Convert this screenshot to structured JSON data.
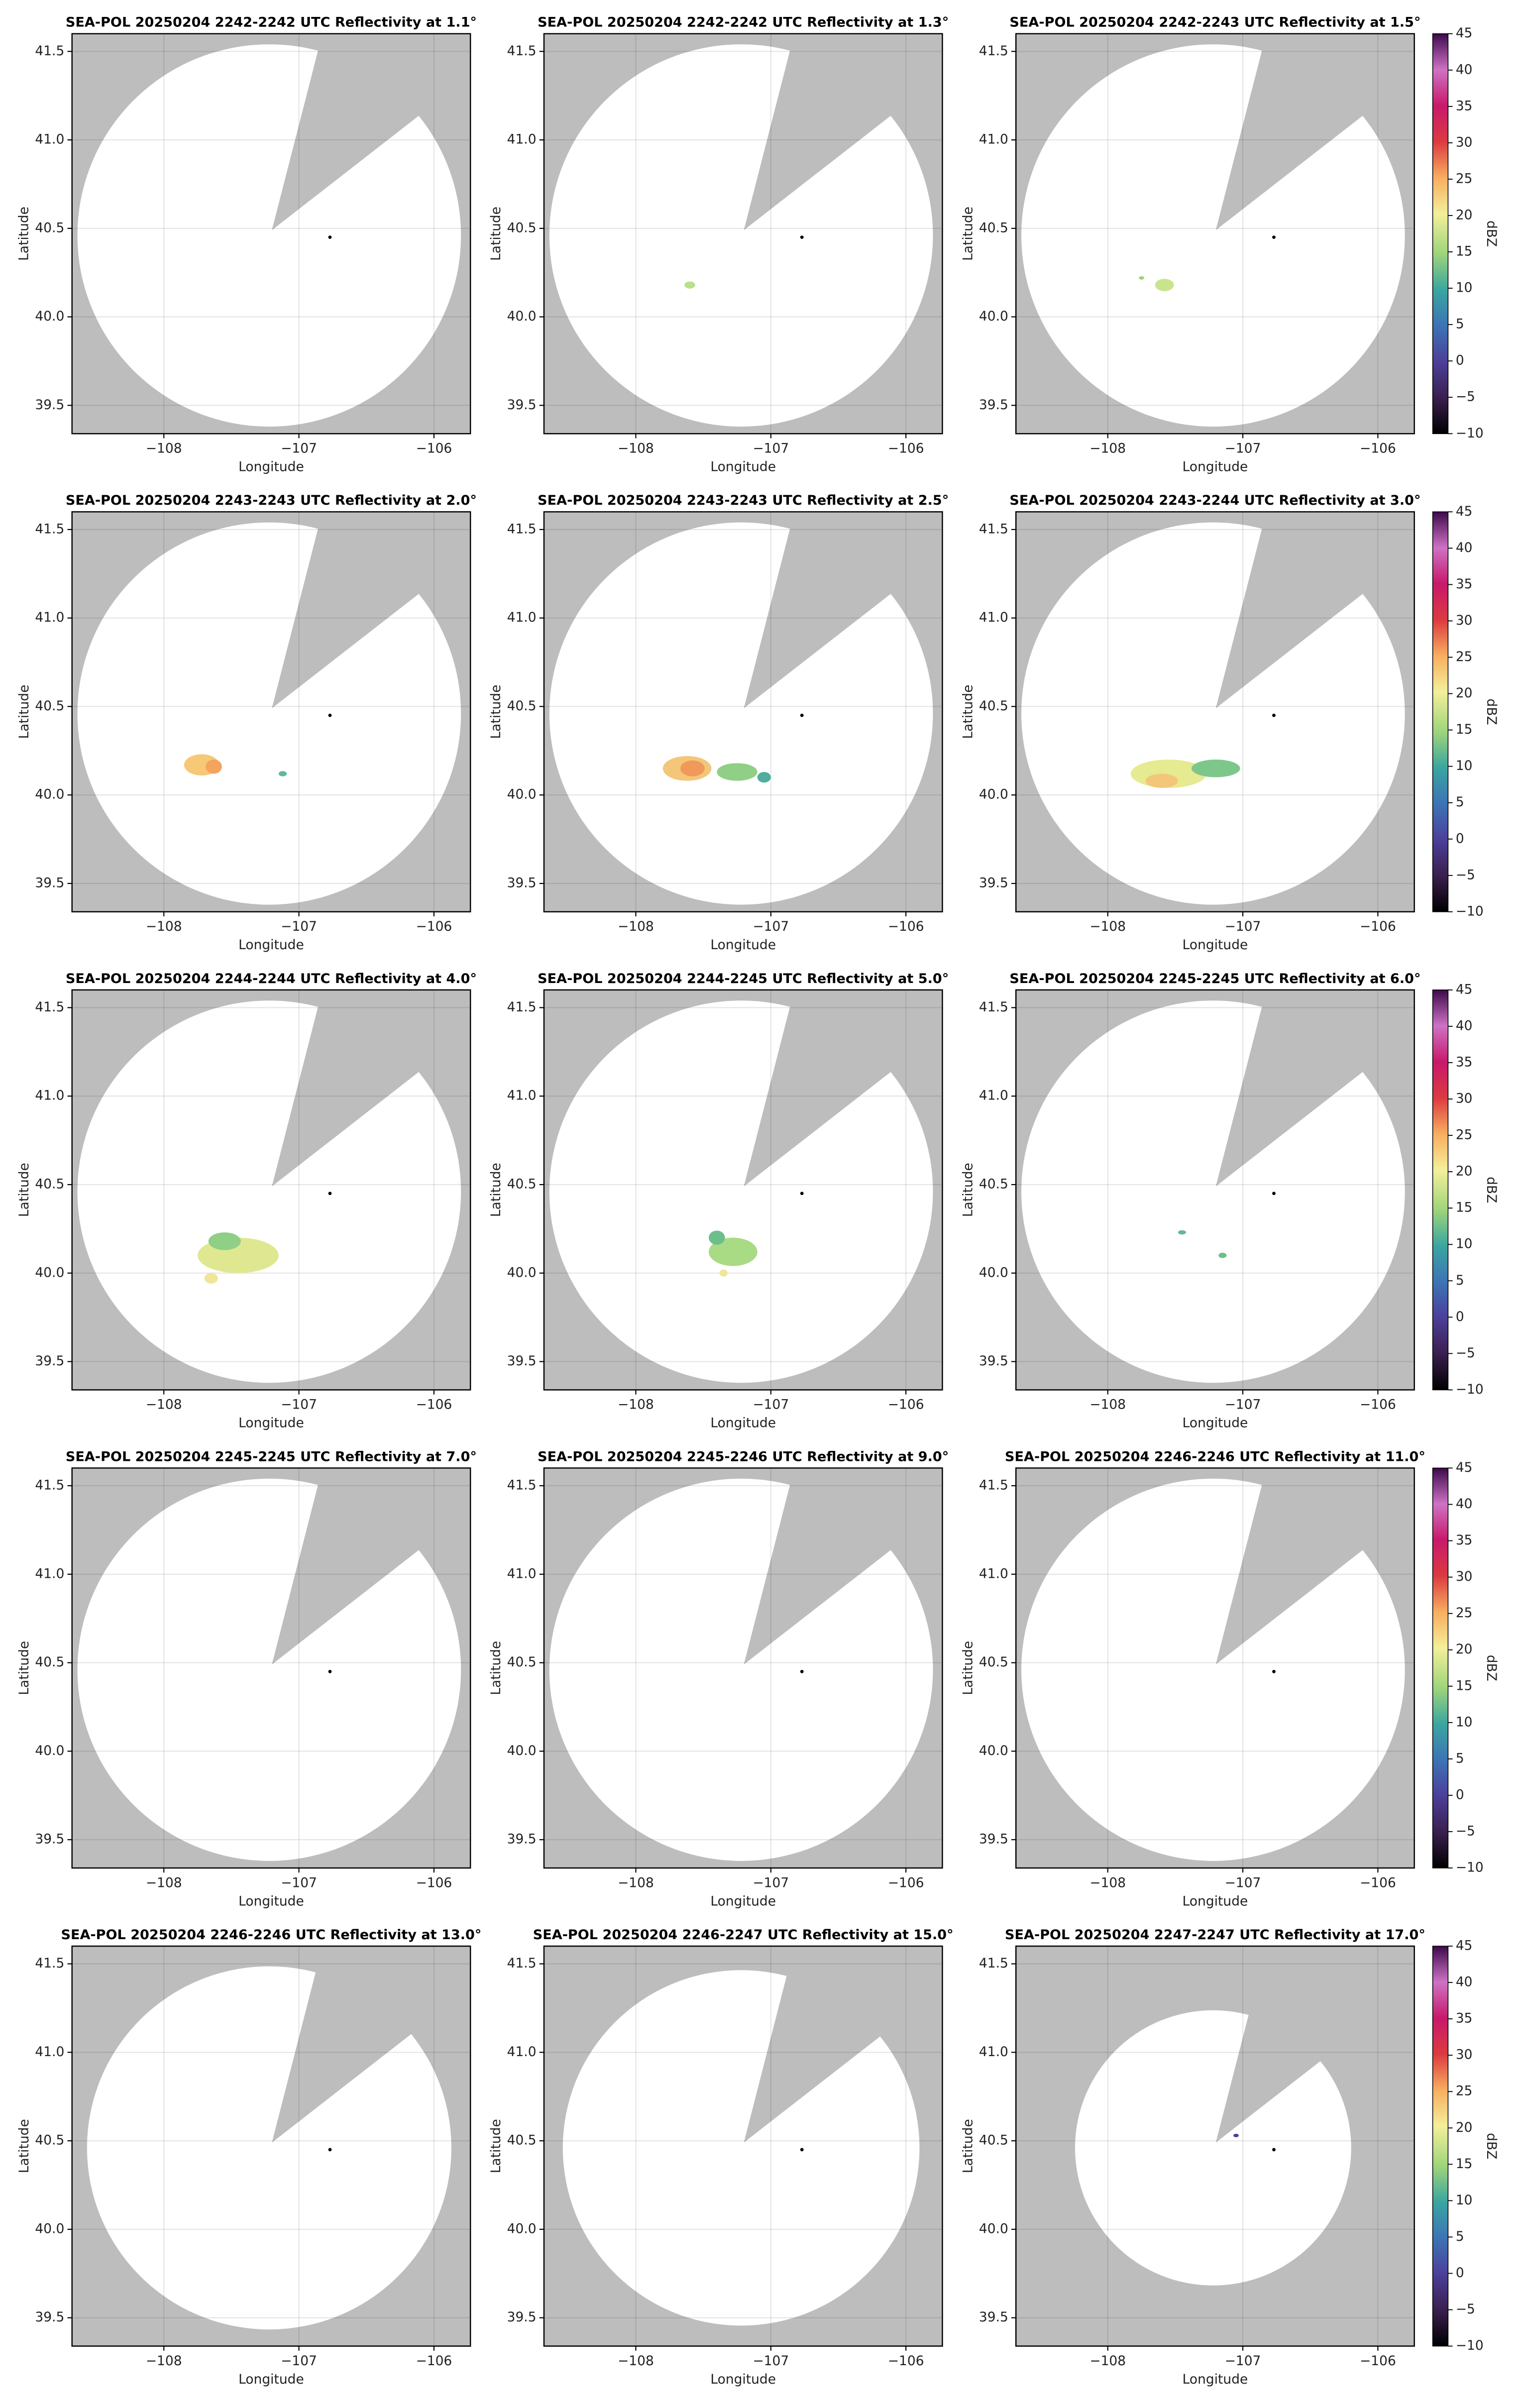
{
  "chart_data": [
    {
      "type": "radar",
      "title": "SEA-POL 20250204 2242-2242 UTC Reflectivity at 1.1°",
      "xlabel": "Longitude",
      "ylabel": "Latitude",
      "xlim": [
        -108.68,
        -105.73
      ],
      "ylim": [
        39.34,
        41.6
      ],
      "xticks": [
        {
          "value": -108,
          "label": "−108"
        },
        {
          "value": -107,
          "label": "−107"
        },
        {
          "value": -106,
          "label": "−106"
        }
      ],
      "yticks": [
        39.5,
        {
          "value": 40,
          "label": "40.0"
        },
        40.5,
        {
          "value": 41,
          "label": "41.0"
        },
        41.5
      ],
      "grid": true
    },
    {
      "type": "radar",
      "title": "SEA-POL 20250204 2242-2242 UTC Reflectivity at 1.3°",
      "xlabel": "Longitude",
      "ylabel": "Latitude",
      "xlim": [
        -108.68,
        -105.73
      ],
      "ylim": [
        39.34,
        41.6
      ],
      "xticks": [
        {
          "value": -108,
          "label": "−108"
        },
        {
          "value": -107,
          "label": "−107"
        },
        {
          "value": -106,
          "label": "−106"
        }
      ],
      "yticks": [
        39.5,
        {
          "value": 40,
          "label": "40.0"
        },
        40.5,
        {
          "value": 41,
          "label": "41.0"
        },
        41.5
      ],
      "grid": true
    },
    {
      "type": "radar",
      "title": "SEA-POL 20250204 2242-2243 UTC Reflectivity at 1.5°",
      "xlabel": "Longitude",
      "ylabel": "Latitude",
      "xlim": [
        -108.68,
        -105.73
      ],
      "ylim": [
        39.34,
        41.6
      ],
      "xticks": [
        {
          "value": -108,
          "label": "−108"
        },
        {
          "value": -107,
          "label": "−107"
        },
        {
          "value": -106,
          "label": "−106"
        }
      ],
      "yticks": [
        39.5,
        {
          "value": 40,
          "label": "40.0"
        },
        40.5,
        {
          "value": 41,
          "label": "41.0"
        },
        41.5
      ],
      "grid": true,
      "colorbar": {
        "label": "dBZ",
        "lim": [
          -10,
          45
        ],
        "ticks": [
          {
            "value": -10,
            "label": "−10"
          },
          {
            "value": -5,
            "label": "−5"
          },
          0,
          5,
          10,
          15,
          20,
          25,
          30,
          35,
          40,
          45
        ]
      }
    },
    {
      "type": "radar",
      "title": "SEA-POL 20250204 2243-2243 UTC Reflectivity at 2.0°",
      "xlabel": "Longitude",
      "ylabel": "Latitude",
      "xlim": [
        -108.68,
        -105.73
      ],
      "ylim": [
        39.34,
        41.6
      ],
      "xticks": [
        {
          "value": -108,
          "label": "−108"
        },
        {
          "value": -107,
          "label": "−107"
        },
        {
          "value": -106,
          "label": "−106"
        }
      ],
      "yticks": [
        39.5,
        {
          "value": 40,
          "label": "40.0"
        },
        40.5,
        {
          "value": 41,
          "label": "41.0"
        },
        41.5
      ],
      "grid": true
    },
    {
      "type": "radar",
      "title": "SEA-POL 20250204 2243-2243 UTC Reflectivity at 2.5°",
      "xlabel": "Longitude",
      "ylabel": "Latitude",
      "xlim": [
        -108.68,
        -105.73
      ],
      "ylim": [
        39.34,
        41.6
      ],
      "xticks": [
        {
          "value": -108,
          "label": "−108"
        },
        {
          "value": -107,
          "label": "−107"
        },
        {
          "value": -106,
          "label": "−106"
        }
      ],
      "yticks": [
        39.5,
        {
          "value": 40,
          "label": "40.0"
        },
        40.5,
        {
          "value": 41,
          "label": "41.0"
        },
        41.5
      ],
      "grid": true
    },
    {
      "type": "radar",
      "title": "SEA-POL 20250204 2243-2244 UTC Reflectivity at 3.0°",
      "xlabel": "Longitude",
      "ylabel": "Latitude",
      "xlim": [
        -108.68,
        -105.73
      ],
      "ylim": [
        39.34,
        41.6
      ],
      "xticks": [
        {
          "value": -108,
          "label": "−108"
        },
        {
          "value": -107,
          "label": "−107"
        },
        {
          "value": -106,
          "label": "−106"
        }
      ],
      "yticks": [
        39.5,
        {
          "value": 40,
          "label": "40.0"
        },
        40.5,
        {
          "value": 41,
          "label": "41.0"
        },
        41.5
      ],
      "grid": true,
      "colorbar": {
        "label": "dBZ",
        "lim": [
          -10,
          45
        ],
        "ticks": [
          {
            "value": -10,
            "label": "−10"
          },
          {
            "value": -5,
            "label": "−5"
          },
          0,
          5,
          10,
          15,
          20,
          25,
          30,
          35,
          40,
          45
        ]
      }
    },
    {
      "type": "radar",
      "title": "SEA-POL 20250204 2244-2244 UTC Reflectivity at 4.0°",
      "xlabel": "Longitude",
      "ylabel": "Latitude",
      "xlim": [
        -108.68,
        -105.73
      ],
      "ylim": [
        39.34,
        41.6
      ],
      "xticks": [
        {
          "value": -108,
          "label": "−108"
        },
        {
          "value": -107,
          "label": "−107"
        },
        {
          "value": -106,
          "label": "−106"
        }
      ],
      "yticks": [
        39.5,
        {
          "value": 40,
          "label": "40.0"
        },
        40.5,
        {
          "value": 41,
          "label": "41.0"
        },
        41.5
      ],
      "grid": true
    },
    {
      "type": "radar",
      "title": "SEA-POL 20250204 2244-2245 UTC Reflectivity at 5.0°",
      "xlabel": "Longitude",
      "ylabel": "Latitude",
      "xlim": [
        -108.68,
        -105.73
      ],
      "ylim": [
        39.34,
        41.6
      ],
      "xticks": [
        {
          "value": -108,
          "label": "−108"
        },
        {
          "value": -107,
          "label": "−107"
        },
        {
          "value": -106,
          "label": "−106"
        }
      ],
      "yticks": [
        39.5,
        {
          "value": 40,
          "label": "40.0"
        },
        40.5,
        {
          "value": 41,
          "label": "41.0"
        },
        41.5
      ],
      "grid": true
    },
    {
      "type": "radar",
      "title": "SEA-POL 20250204 2245-2245 UTC Reflectivity at 6.0°",
      "xlabel": "Longitude",
      "ylabel": "Latitude",
      "xlim": [
        -108.68,
        -105.73
      ],
      "ylim": [
        39.34,
        41.6
      ],
      "xticks": [
        {
          "value": -108,
          "label": "−108"
        },
        {
          "value": -107,
          "label": "−107"
        },
        {
          "value": -106,
          "label": "−106"
        }
      ],
      "yticks": [
        39.5,
        {
          "value": 40,
          "label": "40.0"
        },
        40.5,
        {
          "value": 41,
          "label": "41.0"
        },
        41.5
      ],
      "grid": true,
      "colorbar": {
        "label": "dBZ",
        "lim": [
          -10,
          45
        ],
        "ticks": [
          {
            "value": -10,
            "label": "−10"
          },
          {
            "value": -5,
            "label": "−5"
          },
          0,
          5,
          10,
          15,
          20,
          25,
          30,
          35,
          40,
          45
        ]
      }
    },
    {
      "type": "radar",
      "title": "SEA-POL 20250204 2245-2245 UTC Reflectivity at 7.0°",
      "xlabel": "Longitude",
      "ylabel": "Latitude",
      "xlim": [
        -108.68,
        -105.73
      ],
      "ylim": [
        39.34,
        41.6
      ],
      "xticks": [
        {
          "value": -108,
          "label": "−108"
        },
        {
          "value": -107,
          "label": "−107"
        },
        {
          "value": -106,
          "label": "−106"
        }
      ],
      "yticks": [
        39.5,
        {
          "value": 40,
          "label": "40.0"
        },
        40.5,
        {
          "value": 41,
          "label": "41.0"
        },
        41.5
      ],
      "grid": true
    },
    {
      "type": "radar",
      "title": "SEA-POL 20250204 2245-2246 UTC Reflectivity at 9.0°",
      "xlabel": "Longitude",
      "ylabel": "Latitude",
      "xlim": [
        -108.68,
        -105.73
      ],
      "ylim": [
        39.34,
        41.6
      ],
      "xticks": [
        {
          "value": -108,
          "label": "−108"
        },
        {
          "value": -107,
          "label": "−107"
        },
        {
          "value": -106,
          "label": "−106"
        }
      ],
      "yticks": [
        39.5,
        {
          "value": 40,
          "label": "40.0"
        },
        40.5,
        {
          "value": 41,
          "label": "41.0"
        },
        41.5
      ],
      "grid": true
    },
    {
      "type": "radar",
      "title": "SEA-POL 20250204 2246-2246 UTC Reflectivity at 11.0°",
      "xlabel": "Longitude",
      "ylabel": "Latitude",
      "xlim": [
        -108.68,
        -105.73
      ],
      "ylim": [
        39.34,
        41.6
      ],
      "xticks": [
        {
          "value": -108,
          "label": "−108"
        },
        {
          "value": -107,
          "label": "−107"
        },
        {
          "value": -106,
          "label": "−106"
        }
      ],
      "yticks": [
        39.5,
        {
          "value": 40,
          "label": "40.0"
        },
        40.5,
        {
          "value": 41,
          "label": "41.0"
        },
        41.5
      ],
      "grid": true,
      "colorbar": {
        "label": "dBZ",
        "lim": [
          -10,
          45
        ],
        "ticks": [
          {
            "value": -10,
            "label": "−10"
          },
          {
            "value": -5,
            "label": "−5"
          },
          0,
          5,
          10,
          15,
          20,
          25,
          30,
          35,
          40,
          45
        ]
      }
    },
    {
      "type": "radar",
      "title": "SEA-POL 20250204 2246-2246 UTC Reflectivity at 13.0°",
      "xlabel": "Longitude",
      "ylabel": "Latitude",
      "xlim": [
        -108.68,
        -105.73
      ],
      "ylim": [
        39.34,
        41.6
      ],
      "xticks": [
        {
          "value": -108,
          "label": "−108"
        },
        {
          "value": -107,
          "label": "−107"
        },
        {
          "value": -106,
          "label": "−106"
        }
      ],
      "yticks": [
        39.5,
        {
          "value": 40,
          "label": "40.0"
        },
        40.5,
        {
          "value": 41,
          "label": "41.0"
        },
        41.5
      ],
      "grid": true
    },
    {
      "type": "radar",
      "title": "SEA-POL 20250204 2246-2247 UTC Reflectivity at 15.0°",
      "xlabel": "Longitude",
      "ylabel": "Latitude",
      "xlim": [
        -108.68,
        -105.73
      ],
      "ylim": [
        39.34,
        41.6
      ],
      "xticks": [
        {
          "value": -108,
          "label": "−108"
        },
        {
          "value": -107,
          "label": "−107"
        },
        {
          "value": -106,
          "label": "−106"
        }
      ],
      "yticks": [
        39.5,
        {
          "value": 40,
          "label": "40.0"
        },
        40.5,
        {
          "value": 41,
          "label": "41.0"
        },
        41.5
      ],
      "grid": true
    },
    {
      "type": "radar",
      "title": "SEA-POL 20250204 2247-2247 UTC Reflectivity at 17.0°",
      "xlabel": "Longitude",
      "ylabel": "Latitude",
      "xlim": [
        -108.68,
        -105.73
      ],
      "ylim": [
        39.34,
        41.6
      ],
      "xticks": [
        {
          "value": -108,
          "label": "−108"
        },
        {
          "value": -107,
          "label": "−107"
        },
        {
          "value": -106,
          "label": "−106"
        }
      ],
      "yticks": [
        39.5,
        {
          "value": 40,
          "label": "40.0"
        },
        40.5,
        {
          "value": 41,
          "label": "41.0"
        },
        41.5
      ],
      "grid": true,
      "colorbar": {
        "label": "dBZ",
        "lim": [
          -10,
          45
        ],
        "ticks": [
          {
            "value": -10,
            "label": "−10"
          },
          {
            "value": -5,
            "label": "−5"
          },
          0,
          5,
          10,
          15,
          20,
          25,
          30,
          35,
          40,
          45
        ]
      }
    }
  ]
}
